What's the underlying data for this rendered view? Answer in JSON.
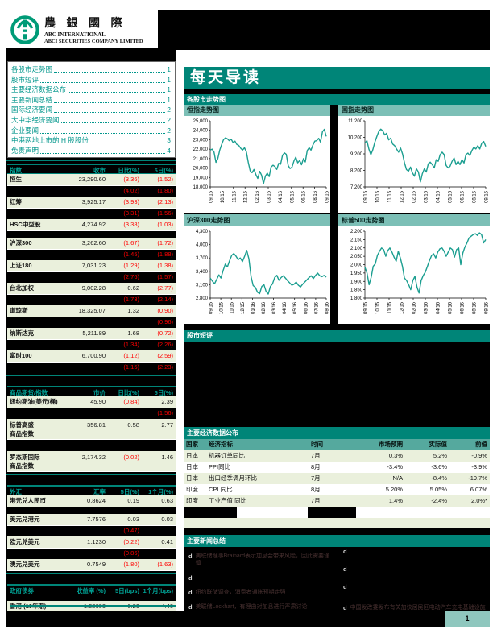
{
  "logo": {
    "cn": "農 銀 國 際",
    "en1": "ABC INTERNATIONAL",
    "en2": "ABCI SECURITIES COMPANY LIMITED"
  },
  "banner": {
    "title": "每天导读"
  },
  "sections": {
    "charts_bar": "各股市走势图",
    "comment_bar": "股市短评",
    "econ_bar": "主要经济数据公布",
    "news_bar": "主要新闻总结"
  },
  "toc": {
    "items": [
      {
        "label": "各股市走势图",
        "page": "1"
      },
      {
        "label": "股市短评",
        "page": "1"
      },
      {
        "label": "主要经济数据公布",
        "page": "1"
      },
      {
        "label": "主要新闻总结",
        "page": "1"
      },
      {
        "label": "国际经济要闻",
        "page": "2"
      },
      {
        "label": "大中华经济要闻",
        "page": "2"
      },
      {
        "label": "企业要闻",
        "page": "2"
      },
      {
        "label": "中港两地上市的 H 股股份",
        "page": "3"
      },
      {
        "label": "免责声明",
        "page": "4"
      }
    ]
  },
  "left_tables": [
    {
      "headers": [
        "指数",
        "收市",
        "日比(%)",
        "5日(%)"
      ],
      "rows": [
        {
          "n": "恒生",
          "c1": "23,290.60",
          "c2": "(3.36)",
          "c3": "(1.52)"
        },
        {
          "redacted": true,
          "c2": "(4.02)",
          "c3": "(1.80)"
        },
        {
          "n": "红筹",
          "c1": "3,925.17",
          "c2": "(3.93)",
          "c3": "(2.13)"
        },
        {
          "redacted": true,
          "c2": "(3.31)",
          "c3": "(1.56)"
        },
        {
          "n": "HSC中型股",
          "c1": "4,274.92",
          "c2": "(3.38)",
          "c3": "(1.03)"
        },
        {
          "redacted": true
        },
        {
          "n": "沪深300",
          "c1": "3,262.60",
          "c2": "(1.67)",
          "c3": "(1.72)"
        },
        {
          "redacted": true,
          "c2": "(1.45)",
          "c3": "(1.88)"
        },
        {
          "n": "上证180",
          "c1": "7,031.23",
          "c2": "(1.29)",
          "c3": "(1.38)"
        },
        {
          "redacted": true,
          "c2": "(2.76)",
          "c3": "(1.57)"
        },
        {
          "n": "台北加权",
          "c1": "9,002.28",
          "c2": "0.62",
          "c3": "(2.77)"
        },
        {
          "redacted": true,
          "c2": "(1.73)",
          "c3": "(2.14)"
        },
        {
          "n": "道琼斯",
          "c1": "18,325.07",
          "c2": "1.32",
          "c3": "(0.90)"
        },
        {
          "redacted": true,
          "c3": "(0.96)"
        },
        {
          "n": "纳斯达克",
          "c1": "5,211.89",
          "c2": "1.68",
          "c3": "(0.72)"
        },
        {
          "redacted": true,
          "c2": "(1.34)",
          "c3": "(2.26)"
        },
        {
          "n": "富时100",
          "c1": "6,700.90",
          "c2": "(1.12)",
          "c3": "(2.59)"
        },
        {
          "redacted": true,
          "c2": "(1.15)",
          "c3": "(2.23)"
        }
      ]
    },
    {
      "headers": [
        "商品期货/指数",
        "市价",
        "日比(%)",
        "5日(%)"
      ],
      "rows": [
        {
          "n": "纽约期油(美元/桶)",
          "c1": "45.90",
          "c2": "(0.84)",
          "c3": "2.39"
        },
        {
          "redacted": true,
          "c3": "(1.56)"
        },
        {
          "n": "标普高盛\n商品指数",
          "c1": "356.81",
          "c2": "0.58",
          "c3": "2.77",
          "tall": true
        },
        {
          "redacted": true,
          "tall": true
        },
        {
          "n": "罗杰斯国际\n商品指数",
          "c1": "2,174.32",
          "c2": "(0.02)",
          "c3": "1.46",
          "tall": true
        }
      ]
    },
    {
      "headers": [
        "外汇",
        "汇率",
        "5日(%)",
        "1个月(%)"
      ],
      "rows": [
        {
          "n": "港元兑人民币",
          "c1": "0.8624",
          "c2": "0.19",
          "c3": "0.63"
        },
        {
          "redacted": true
        },
        {
          "n": "美元兑港元",
          "c1": "7.7576",
          "c2": "0.03",
          "c3": "0.03"
        },
        {
          "redacted": true,
          "c2": "(0.47)"
        },
        {
          "n": "欧元兑美元",
          "c1": "1.1230",
          "c2": "(0.22)",
          "c3": "0.41"
        },
        {
          "redacted": true,
          "c2": "(0.86)"
        },
        {
          "n": "澳元兑美元",
          "c1": "0.7549",
          "c2": "(1.80)",
          "c3": "(1.63)"
        }
      ]
    },
    {
      "headers": [
        "政府债券",
        "收益率 (%)",
        "5日(bps)",
        "1个月(bps)"
      ],
      "rows": [
        {
          "redacted": true
        },
        {
          "n": "香港 (10年期)",
          "c1": "1.02600",
          "c2": "0.20",
          "c3": "4.40"
        },
        {
          "redacted": true
        }
      ]
    }
  ],
  "econ_table": {
    "headers": [
      "国家",
      "经济指标",
      "时间",
      "市场预期",
      "实际值",
      "前值"
    ],
    "rows": [
      [
        "日本",
        "机器订单同比",
        "7月",
        "0.3%",
        "5.2%",
        "-0.9%"
      ],
      [
        "日本",
        "PPI同比",
        "8月",
        "-3.4%",
        "-3.6%",
        "-3.9%"
      ],
      [
        "日本",
        "出口经季调月环比",
        "7月",
        "N/A",
        "-8.4%",
        "-19.7%"
      ],
      [
        "印度",
        "CPI 同比",
        "8月",
        "5.20%",
        "5.05%",
        "6.07%"
      ],
      [
        "印度",
        "工业产值 同比",
        "7月",
        "1.4%",
        "-2.4%",
        "2.0%*"
      ]
    ]
  },
  "news": {
    "bullet": "d",
    "left": [
      "美联储理事Brainard表示加息会带来风险，因此需要谨慎",
      "",
      "纽约联储调查，消费者通胀预期走强",
      "美联储Lockhart，有理由对加息进行严肃讨论"
    ],
    "right": [
      "",
      "",
      "",
      "中国发改委发布有关加快居民区电动汽车充电基础设施建设的通知"
    ]
  },
  "footer": {
    "page": "1"
  },
  "colors": {
    "teal": "#008578",
    "teal_text": "#00A396",
    "title_strip": "#7CBFB6",
    "econ_header": "#55A99E",
    "pale_row": "#EAF0DC",
    "negative_red": "#FF0000",
    "chart_line": "#1B9E90",
    "toc_text": "#00968B",
    "page_box": "#8FC7BE",
    "logo_green": "#009B77"
  },
  "chart_data": [
    {
      "type": "line",
      "title": "恒指走势图",
      "ylim": [
        18000,
        25000
      ],
      "yticks": [
        "18,000",
        "19,000",
        "20,000",
        "21,000",
        "22,000",
        "23,000",
        "24,000",
        "25,000"
      ],
      "xlabels": [
        "09/15",
        "10/15",
        "11/15",
        "12/15",
        "02/16",
        "03/16",
        "04/16",
        "05/16",
        "06/16",
        "08/16",
        "09/16"
      ],
      "values": [
        21900,
        22000,
        21700,
        20600,
        21000,
        21900,
        22500,
        23000,
        23200,
        23100,
        22900,
        23050,
        22700,
        22850,
        22500,
        22400,
        22100,
        21900,
        22150,
        21700,
        20600,
        19700,
        19500,
        19850,
        19300,
        18900,
        19650,
        19250,
        18350,
        19150,
        19450,
        19100,
        20100,
        20300,
        20150,
        19850,
        20500,
        20400,
        21350,
        21600,
        21450,
        20250,
        19950,
        20100,
        20750,
        21150,
        20550,
        20800,
        20350,
        21000,
        20650,
        21850,
        22150,
        21900,
        22450,
        22850,
        22900,
        23150,
        22750,
        23850,
        24100,
        23350
      ]
    },
    {
      "type": "line",
      "title": "国指走势图",
      "ylim": [
        7200,
        11200
      ],
      "yticks": [
        "7,200",
        "8,200",
        "9,200",
        "10,200",
        "11,200"
      ],
      "xlabels": [
        "09/15",
        "10/15",
        "11/15",
        "12/15",
        "02/16",
        "03/16",
        "04/16",
        "05/16",
        "06/16",
        "08/16",
        "09/16"
      ],
      "values": [
        9850,
        10000,
        9500,
        9150,
        9450,
        9900,
        10250,
        10550,
        10700,
        10600,
        10350,
        10450,
        10050,
        10150,
        9800,
        9700,
        9500,
        9300,
        9550,
        9200,
        8650,
        8250,
        8150,
        8400,
        8050,
        7850,
        8300,
        8100,
        7500,
        8000,
        8300,
        8100,
        8600,
        8700,
        8550,
        8350,
        8850,
        8750,
        9150,
        9300,
        9150,
        8500,
        8350,
        8450,
        8750,
        8950,
        8550,
        8750,
        8550,
        8850,
        8650,
        9150,
        9250,
        9100,
        9400,
        9600,
        9500,
        9700,
        9500,
        9850,
        9950,
        9650
      ]
    },
    {
      "type": "line",
      "title": "沪深300走势图",
      "ylim": [
        2800,
        4300
      ],
      "yticks": [
        "2,800",
        "3,100",
        "3,400",
        "3,700",
        "4,000",
        "4,300"
      ],
      "xlabels": [
        "09/15",
        "10/15",
        "11/15",
        "12/15",
        "01/16",
        "02/16",
        "03/16",
        "04/16",
        "05/16",
        "06/16",
        "07/16",
        "08/16"
      ],
      "values": [
        3250,
        3180,
        3120,
        3220,
        3320,
        3250,
        3420,
        3560,
        3500,
        3640,
        3760,
        3800,
        3740,
        3660,
        3700,
        3620,
        3740,
        3870,
        3680,
        3280,
        3080,
        3040,
        2930,
        2900,
        3060,
        3100,
        2950,
        2890,
        3060,
        3120,
        3260,
        3310,
        3200,
        3260,
        3300,
        3250,
        3190,
        3140,
        3090,
        3110,
        3160,
        3090,
        3050,
        3110,
        3160,
        3210,
        3260,
        3300,
        3240,
        3310,
        3360,
        3300,
        3280,
        3310,
        3270
      ]
    },
    {
      "type": "line",
      "title": "标普500走势图",
      "ylim": [
        1800,
        2200
      ],
      "yticks": [
        "1,800",
        "1,850",
        "1,900",
        "1,950",
        "2,000",
        "2,050",
        "2,100",
        "2,150",
        "2,200"
      ],
      "xlabels": [
        "09/15",
        "10/15",
        "11/15",
        "12/15",
        "02/16",
        "03/16",
        "04/16",
        "05/16",
        "06/16",
        "08/16",
        "09/16"
      ],
      "values": [
        1985,
        1950,
        1880,
        1925,
        1990,
        2005,
        2055,
        2080,
        2100,
        2090,
        2050,
        2085,
        2100,
        2075,
        2045,
        2020,
        2080,
        2040,
        1990,
        1920,
        1905,
        1880,
        1850,
        1905,
        1930,
        1865,
        1830,
        1905,
        1935,
        1955,
        1990,
        2025,
        2055,
        2065,
        2040,
        2075,
        2095,
        2100,
        2080,
        2050,
        2075,
        2100,
        2090,
        2045,
        2090,
        2100,
        2000,
        2070,
        2105,
        2130,
        2160,
        2170,
        2180,
        2185,
        2175,
        2190,
        2180,
        2130,
        2150
      ]
    }
  ]
}
